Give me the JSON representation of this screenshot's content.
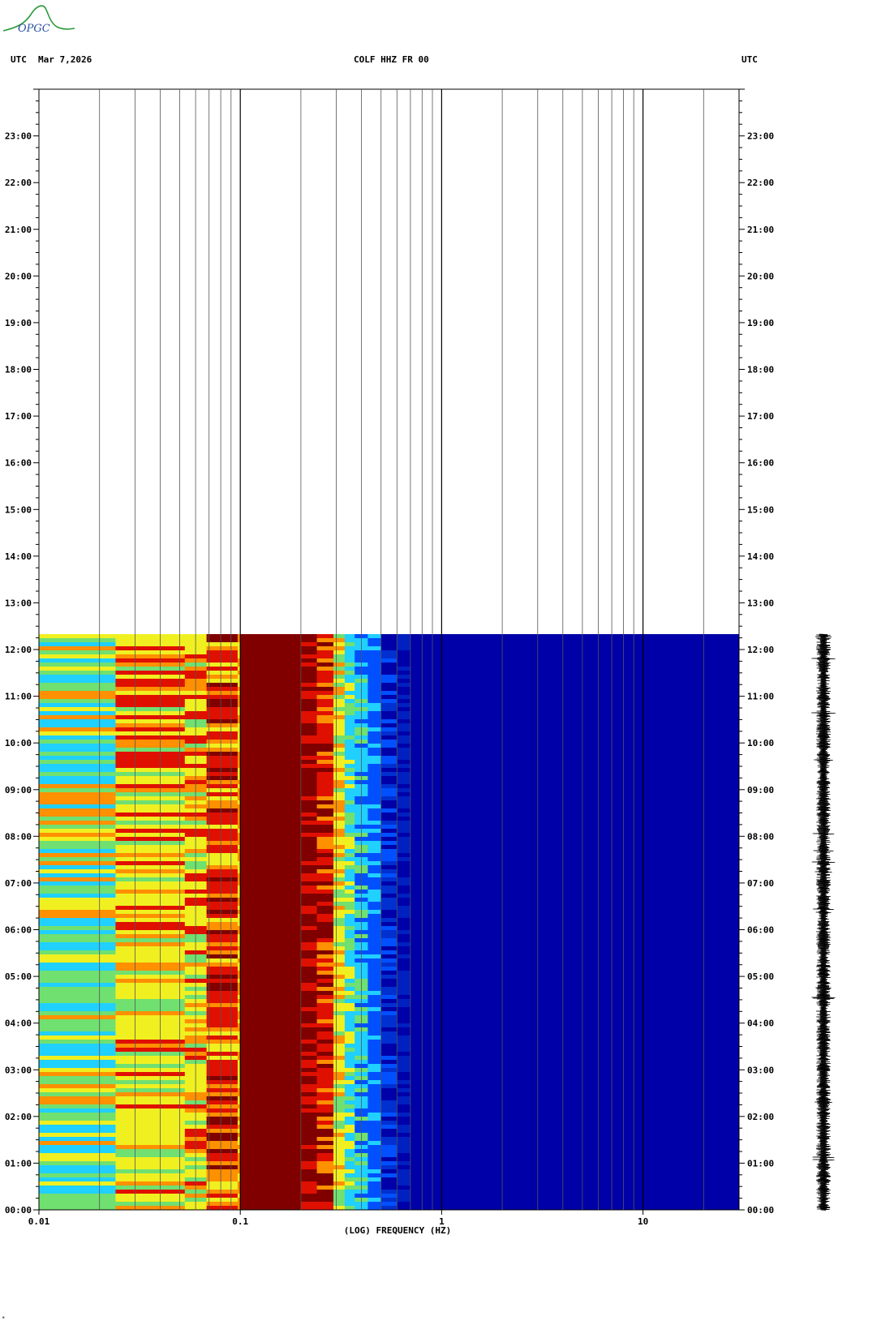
{
  "header": {
    "logo_text": "OPGC",
    "left_label": "UTC",
    "date": "Mar 7,2026",
    "station": "COLF HHZ FR 00",
    "right_label": "UTC"
  },
  "footer_mark": "*",
  "colors": {
    "deep_blue": "#0000a8",
    "blue": "#0050ff",
    "cyan": "#20d0ff",
    "green": "#70e070",
    "yellow": "#f0f020",
    "orange": "#ff9000",
    "red": "#e01000",
    "dark_red": "#800000",
    "logo_green": "#2a9a3a",
    "logo_blue": "#2b4fa0"
  },
  "chart_data": {
    "type": "heatmap",
    "xlabel": "(LOG) FREQUENCY (HZ)",
    "x_scale": "log",
    "xlim": [
      0.01,
      30
    ],
    "x_ticks": [
      {
        "value": 0.01,
        "label": "0.01"
      },
      {
        "value": 0.1,
        "label": "0.1"
      },
      {
        "value": 1,
        "label": "1"
      },
      {
        "value": 10,
        "label": "10"
      }
    ],
    "ylim_hours": [
      0,
      24
    ],
    "y_ticks": [
      {
        "hour": 0,
        "label": "00:00"
      },
      {
        "hour": 1,
        "label": "01:00"
      },
      {
        "hour": 2,
        "label": "02:00"
      },
      {
        "hour": 3,
        "label": "03:00"
      },
      {
        "hour": 4,
        "label": "04:00"
      },
      {
        "hour": 5,
        "label": "05:00"
      },
      {
        "hour": 6,
        "label": "06:00"
      },
      {
        "hour": 7,
        "label": "07:00"
      },
      {
        "hour": 8,
        "label": "08:00"
      },
      {
        "hour": 9,
        "label": "09:00"
      },
      {
        "hour": 10,
        "label": "10:00"
      },
      {
        "hour": 11,
        "label": "11:00"
      },
      {
        "hour": 12,
        "label": "12:00"
      },
      {
        "hour": 13,
        "label": "13:00"
      },
      {
        "hour": 14,
        "label": "14:00"
      },
      {
        "hour": 15,
        "label": "15:00"
      },
      {
        "hour": 16,
        "label": "16:00"
      },
      {
        "hour": 17,
        "label": "17:00"
      },
      {
        "hour": 18,
        "label": "18:00"
      },
      {
        "hour": 19,
        "label": "19:00"
      },
      {
        "hour": 20,
        "label": "20:00"
      },
      {
        "hour": 21,
        "label": "21:00"
      },
      {
        "hour": 22,
        "label": "22:00"
      },
      {
        "hour": 23,
        "label": "23:00"
      }
    ],
    "data_end_hour": 12.33,
    "grid": true,
    "frequency_bands": [
      {
        "from": 0.01,
        "to": 0.024,
        "color": "cyan-green"
      },
      {
        "from": 0.024,
        "to": 0.053,
        "color": "yellow-orange"
      },
      {
        "from": 0.053,
        "to": 0.068,
        "color": "yellow-red"
      },
      {
        "from": 0.068,
        "to": 0.097,
        "color": "red-yellow"
      },
      {
        "from": 0.1,
        "to": 0.24,
        "color": "dark red"
      },
      {
        "from": 0.24,
        "to": 0.29,
        "color": "red"
      },
      {
        "from": 0.29,
        "to": 0.37,
        "color": "yellow"
      },
      {
        "from": 0.37,
        "to": 0.5,
        "color": "cyan"
      },
      {
        "from": 0.5,
        "to": 0.7,
        "color": "blue"
      },
      {
        "from": 0.7,
        "to": 30,
        "color": "deep blue"
      }
    ],
    "seismogram_trace": true
  }
}
